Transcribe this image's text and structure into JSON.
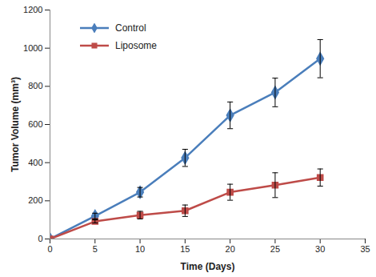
{
  "chart_data": {
    "type": "line",
    "x_label": "Time (Days)",
    "y_label": "Tumor Volume (mm³)",
    "x": [
      0,
      5,
      10,
      15,
      20,
      25,
      30
    ],
    "series": [
      {
        "name": "Control",
        "color": "#4a7ebb",
        "marker": "diamond",
        "values": [
          0,
          120,
          245,
          425,
          648,
          768,
          945
        ],
        "errors": [
          0,
          15,
          25,
          45,
          70,
          75,
          100
        ]
      },
      {
        "name": "Liposome",
        "color": "#be4b48",
        "marker": "square",
        "values": [
          0,
          92,
          125,
          148,
          245,
          282,
          322
        ],
        "errors": [
          0,
          8,
          20,
          30,
          42,
          65,
          45
        ]
      }
    ],
    "xlim": [
      0,
      35
    ],
    "xticks": [
      0,
      5,
      10,
      15,
      20,
      25,
      30,
      35
    ],
    "ylim": [
      0,
      1200
    ],
    "yticks": [
      0,
      200,
      400,
      600,
      800,
      1000,
      1200
    ],
    "grid": false,
    "legend": "top-left"
  }
}
